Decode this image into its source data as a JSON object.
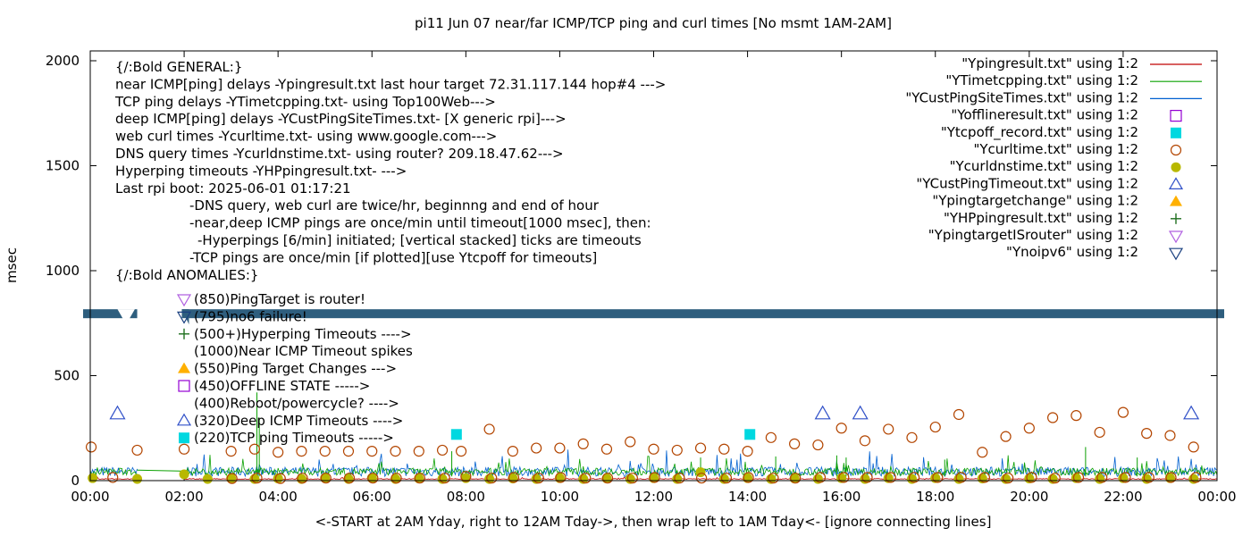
{
  "chart_data": {
    "type": "scatter",
    "title": "pi11 Jun 07  near/far ICMP/TCP ping and curl times [No msmt 1AM-2AM]",
    "xlabel": "<-START at 2AM Yday, right to 12AM Tday->, then wrap left to 1AM Tday<- [ignore connecting lines]",
    "ylabel": "msec",
    "xlim": [
      0,
      24
    ],
    "ylim": [
      0,
      2050
    ],
    "grid": false,
    "legend_position": "top-right",
    "x_ticks": [
      "00:00",
      "02:00",
      "04:00",
      "06:00",
      "08:00",
      "10:00",
      "12:00",
      "14:00",
      "16:00",
      "18:00",
      "20:00",
      "22:00",
      "00:00"
    ],
    "y_ticks": [
      "0",
      "500",
      "1000",
      "1500",
      "2000"
    ],
    "colors": {
      "red": "#c00000",
      "green": "#0aa000",
      "blue": "#0060d0",
      "purple": "#9400d3",
      "cyan": "#00d8e0",
      "brown": "#b34500",
      "olive": "#b8b800",
      "indigo": "#3050c8",
      "orange": "#ffb000",
      "darkgreen": "#207020",
      "violet": "#b060e0",
      "navy": "#1a4080",
      "band": "#2e5e7e"
    },
    "legend": [
      {
        "label": "\"Ypingresult.txt\" using 1:2",
        "marker": "line",
        "color": "#c00000"
      },
      {
        "label": "\"YTimetcpping.txt\" using 1:2",
        "marker": "line",
        "color": "#0aa000"
      },
      {
        "label": "\"YCustPingSiteTimes.txt\" using 1:2",
        "marker": "line",
        "color": "#0060d0"
      },
      {
        "label": "\"Yofflineresult.txt\" using 1:2",
        "marker": "square-open",
        "color": "#9400d3"
      },
      {
        "label": "\"Ytcpoff_record.txt\" using 1:2",
        "marker": "square-filled",
        "color": "#00d8e0"
      },
      {
        "label": "\"Ycurltime.txt\" using 1:2",
        "marker": "circle-open",
        "color": "#b34500"
      },
      {
        "label": "\"Ycurldnstime.txt\" using 1:2",
        "marker": "circle-filled",
        "color": "#b8b800"
      },
      {
        "label": "\"YCustPingTimeout.txt\" using 1:2",
        "marker": "triangle-up-open",
        "color": "#3050c8"
      },
      {
        "label": "\"Ypingtargetchange\" using 1:2",
        "marker": "triangle-up-filled",
        "color": "#ffb000"
      },
      {
        "label": "\"YHPpingresult.txt\" using 1:2",
        "marker": "plus",
        "color": "#207020"
      },
      {
        "label": "\"YpingtargetISrouter\" using 1:2",
        "marker": "triangle-down-open",
        "color": "#b060e0"
      },
      {
        "label": "\"Ynoipv6\" using 1:2",
        "marker": "triangle-down-open",
        "color": "#1a4080"
      }
    ],
    "notes": [
      "{/:Bold GENERAL:}",
      "near ICMP[ping] delays -Ypingresult.txt last hour target 72.31.117.144 hop#4 --->",
      "TCP ping delays -YTimetcpping.txt- using Top100Web--->",
      "deep ICMP[ping] delays -YCustPingSiteTimes.txt- [X generic rpi]--->",
      "web curl times -Ycurltime.txt- using www.google.com--->",
      "DNS query times -Ycurldnstime.txt- using router? 209.18.47.62--->",
      "Hyperping timeouts -YHPpingresult.txt- --->",
      "Last rpi boot: 2025-06-01 01:17:21",
      "-DNS query, web curl are twice/hr, beginnng and end of hour",
      "-near,deep ICMP pings are once/min until timeout[1000 msec], then:",
      "-Hyperpings [6/min] initiated; [vertical stacked] ticks are timeouts",
      "-TCP pings are once/min [if plotted][use Ytcpoff for timeouts]",
      "{/:Bold ANOMALIES:}"
    ],
    "anomalies": [
      {
        "text": "(850)PingTarget is router!",
        "marker": "triangle-down-open",
        "color": "#b060e0"
      },
      {
        "text": "(795)no6 failure!",
        "marker": "triangle-down-open",
        "color": "#1a4080"
      },
      {
        "text": "(500+)Hyperping Timeouts ---->",
        "marker": "plus",
        "color": "#207020"
      },
      {
        "text": "(1000)Near ICMP Timeout spikes",
        "marker": "none",
        "color": "#000000"
      },
      {
        "text": "(550)Ping Target Changes --->",
        "marker": "triangle-up-filled",
        "color": "#ffb000"
      },
      {
        "text": "(450)OFFLINE STATE ----->",
        "marker": "square-open",
        "color": "#9400d3"
      },
      {
        "text": "(400)Reboot/powercycle? ---->",
        "marker": "none",
        "color": "#000000"
      },
      {
        "text": "(320)Deep ICMP Timeouts ---->",
        "marker": "triangle-up-open",
        "color": "#3050c8"
      },
      {
        "text": "(220)TCP ping Timeouts ----->",
        "marker": "square-filled",
        "color": "#00d8e0"
      }
    ],
    "series": {
      "noipv6_band": {
        "y": 795,
        "x_gaps": [
          [
            0.58,
            0.95
          ],
          [
            1.0,
            1.95
          ]
        ]
      },
      "curltime": {
        "x": [
          0.02,
          0.48,
          1.0,
          2.0,
          3.0,
          3.02,
          3.5,
          3.55,
          4.0,
          4.05,
          4.5,
          4.52,
          5.0,
          5.02,
          5.5,
          5.52,
          6.0,
          6.02,
          6.5,
          6.52,
          7.0,
          7.02,
          7.5,
          7.55,
          7.9,
          8.0,
          8.5,
          8.55,
          9.0,
          9.02,
          9.5,
          9.55,
          10.0,
          10.02,
          10.5,
          10.55,
          11.0,
          11.02,
          11.5,
          11.55,
          12.0,
          12.02,
          12.5,
          12.55,
          13.0,
          13.02,
          13.5,
          13.55,
          14.0,
          14.02,
          14.5,
          14.55,
          15.0,
          15.02,
          15.5,
          15.55,
          16.0,
          16.05,
          16.5,
          16.55,
          17.0,
          17.05,
          17.5,
          17.55,
          18.0,
          18.05,
          18.5,
          18.55,
          19.0,
          19.05,
          19.5,
          19.55,
          20.0,
          20.05,
          20.5,
          20.55,
          21.0,
          21.05,
          21.5,
          21.55,
          22.0,
          22.05,
          22.5,
          22.55,
          23.0,
          23.02,
          23.5,
          23.55
        ],
        "y": [
          160,
          15,
          145,
          150,
          140,
          10,
          150,
          12,
          135,
          10,
          140,
          12,
          140,
          12,
          140,
          12,
          140,
          12,
          140,
          12,
          140,
          12,
          145,
          12,
          140,
          20,
          245,
          12,
          140,
          15,
          155,
          12,
          155,
          15,
          175,
          12,
          150,
          12,
          185,
          12,
          150,
          15,
          145,
          12,
          155,
          12,
          150,
          12,
          140,
          15,
          205,
          12,
          175,
          12,
          170,
          15,
          250,
          15,
          190,
          15,
          245,
          15,
          205,
          15,
          255,
          15,
          315,
          15,
          135,
          15,
          210,
          12,
          250,
          15,
          300,
          12,
          310,
          15,
          230,
          15,
          325,
          15,
          225,
          15,
          215,
          15,
          160,
          15
        ]
      },
      "curldns": {
        "x": [
          0.05,
          1.0,
          2.0,
          2.5,
          3.0,
          3.5,
          4.0,
          4.5,
          5.0,
          5.5,
          6.0,
          6.5,
          7.0,
          7.5,
          8.0,
          8.5,
          9.0,
          9.5,
          10.0,
          10.5,
          11.0,
          11.5,
          12.0,
          12.5,
          13.0,
          13.5,
          14.0,
          14.5,
          15.0,
          15.5,
          16.0,
          16.5,
          17.0,
          17.5,
          18.0,
          18.5,
          19.0,
          19.5,
          20.0,
          20.5,
          21.0,
          21.5,
          22.0,
          22.5,
          23.0,
          23.5
        ],
        "y": [
          12,
          8,
          30,
          8,
          10,
          8,
          10,
          8,
          12,
          8,
          12,
          8,
          10,
          8,
          12,
          8,
          10,
          8,
          12,
          8,
          10,
          8,
          12,
          8,
          40,
          8,
          12,
          8,
          10,
          8,
          12,
          8,
          12,
          8,
          12,
          8,
          10,
          8,
          10,
          8,
          12,
          8,
          12,
          8,
          12,
          8
        ]
      },
      "custping_timeout": {
        "x": [
          0.58,
          15.6,
          16.4,
          23.45
        ],
        "y": [
          320,
          320,
          320,
          320
        ]
      },
      "tcp_timeout": {
        "x": [
          7.8,
          14.05
        ],
        "y": [
          220,
          220
        ]
      },
      "tcp_base_ms": 25,
      "icmp_near_base_ms": 6,
      "custping_base_ms": 20
    }
  }
}
